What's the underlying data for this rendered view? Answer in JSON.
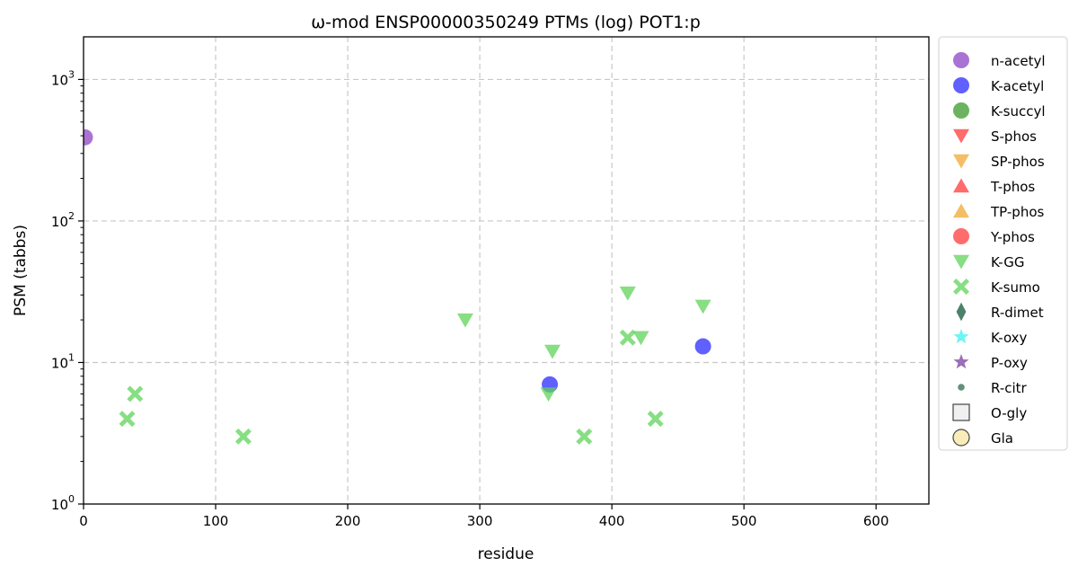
{
  "chart_data": {
    "type": "scatter",
    "title": "ω-mod ENSP00000350249 PTMs (log) POT1:p",
    "xlabel": "residue",
    "ylabel": "PSM (tabbs)",
    "xlim": [
      0,
      640
    ],
    "ylim": [
      1,
      2000
    ],
    "yscale": "log",
    "grid": true,
    "legend_position": "outside-right",
    "x_ticks": [
      0,
      100,
      200,
      300,
      400,
      500,
      600
    ],
    "y_ticks": [
      {
        "value": 1,
        "base": "10",
        "exp": "0"
      },
      {
        "value": 10,
        "base": "10",
        "exp": "1"
      },
      {
        "value": 100,
        "base": "10",
        "exp": "2"
      },
      {
        "value": 1000,
        "base": "10",
        "exp": "3"
      }
    ],
    "series": [
      {
        "name": "n-acetyl",
        "marker": "circle",
        "color": "#8e44c4",
        "points": [
          [
            1,
            390
          ]
        ]
      },
      {
        "name": "K-acetyl",
        "marker": "circle",
        "color": "#2b2bff",
        "points": [
          [
            353,
            7
          ],
          [
            469,
            13
          ]
        ]
      },
      {
        "name": "K-succyl",
        "marker": "circle",
        "color": "#3a9a2a",
        "points": []
      },
      {
        "name": "S-phos",
        "marker": "triangle-down",
        "color": "#ff3b3b",
        "points": []
      },
      {
        "name": "SP-phos",
        "marker": "triangle-down",
        "color": "#f0a830",
        "points": []
      },
      {
        "name": "T-phos",
        "marker": "triangle-up",
        "color": "#ff3b3b",
        "points": []
      },
      {
        "name": "TP-phos",
        "marker": "triangle-up",
        "color": "#f0a830",
        "points": []
      },
      {
        "name": "Y-phos",
        "marker": "circle",
        "color": "#ff3b3b",
        "points": []
      },
      {
        "name": "K-GG",
        "marker": "triangle-down",
        "color": "#5fd35a",
        "points": [
          [
            289,
            20
          ],
          [
            352,
            6
          ],
          [
            355,
            12
          ],
          [
            412,
            31
          ],
          [
            422,
            15
          ],
          [
            469,
            25
          ]
        ]
      },
      {
        "name": "K-sumo",
        "marker": "x",
        "color": "#5fd35a",
        "points": [
          [
            33,
            4
          ],
          [
            39,
            6
          ],
          [
            121,
            3
          ],
          [
            379,
            3
          ],
          [
            412,
            15
          ],
          [
            433,
            4
          ]
        ]
      },
      {
        "name": "R-dimet",
        "marker": "diamond",
        "color": "#2e6b4f",
        "points": []
      },
      {
        "name": "K-oxy",
        "marker": "star",
        "color": "#3ff0f0",
        "points": []
      },
      {
        "name": "P-oxy",
        "marker": "star",
        "color": "#7b3fa0",
        "points": []
      },
      {
        "name": "R-citr",
        "marker": "small-circle",
        "color": "#2e6b4f",
        "points": []
      },
      {
        "name": "O-gly",
        "marker": "square-open",
        "color": "#555555",
        "points": []
      },
      {
        "name": "Gla",
        "marker": "circle-open",
        "color": "#f5e08a",
        "points": []
      }
    ]
  }
}
